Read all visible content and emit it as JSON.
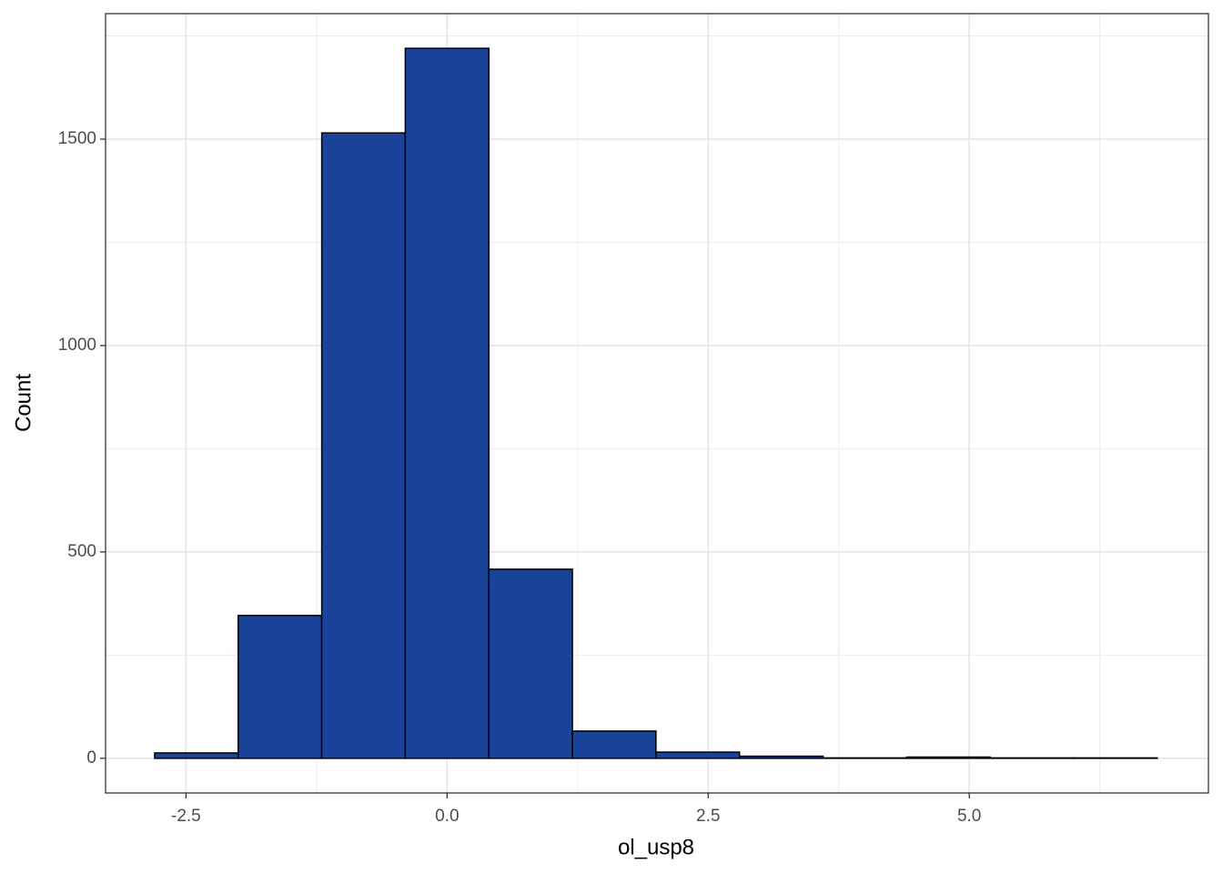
{
  "chart_data": {
    "type": "histogram",
    "x_label": "ol_usp8",
    "y_label": "Count",
    "bins": [
      -2.8,
      -2.0,
      -1.2,
      -0.4,
      0.4,
      1.2,
      2.0,
      2.8,
      3.6,
      4.4,
      5.2,
      6.0,
      6.8
    ],
    "values": [
      13,
      346,
      1515,
      1720,
      458,
      66,
      15,
      5,
      1,
      3,
      1,
      1
    ],
    "color": "#19449a",
    "edge_color": "#000000",
    "xlim": [
      -3.27,
      7.29
    ],
    "ylim": [
      -84,
      1804
    ],
    "xticks": [
      -2.5,
      {
        "value": 0,
        "label": "0.0"
      },
      2.5,
      {
        "value": 5,
        "label": "5.0"
      }
    ],
    "yticks": [
      0,
      500,
      1000,
      1500
    ],
    "x_minor_grid": [
      -1.25,
      1.25,
      3.75,
      6.25
    ],
    "y_minor_grid": [
      250,
      750,
      1250,
      1750
    ],
    "grid": true
  }
}
